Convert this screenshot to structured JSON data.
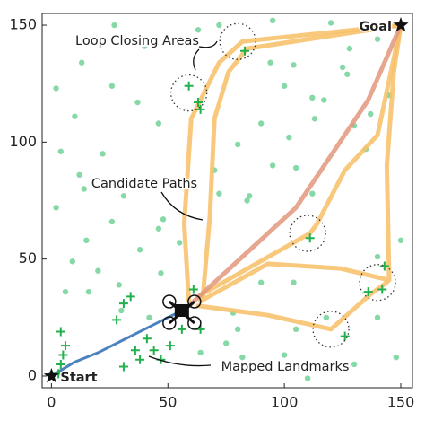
{
  "chart_data": {
    "type": "scatter",
    "xlim": [
      -4,
      155
    ],
    "ylim": [
      -5,
      155
    ],
    "xticks": [
      0,
      50,
      100,
      150
    ],
    "yticks": [
      0,
      50,
      100,
      150
    ],
    "grid": false,
    "series": [
      {
        "kind": "dot",
        "color": "#86d9a7",
        "x": [
          2,
          13,
          26,
          4,
          22,
          37,
          40,
          46,
          12,
          2,
          26,
          15,
          55,
          33,
          72,
          80,
          90,
          100,
          105,
          117,
          127,
          137,
          145,
          63,
          72,
          94,
          120,
          135,
          112,
          84,
          9,
          16,
          38,
          47,
          30,
          20,
          10,
          46,
          78,
          90,
          105,
          118,
          140,
          148,
          100,
          110,
          130,
          140,
          95,
          75,
          85,
          112,
          128,
          95,
          140,
          125,
          64,
          80,
          70,
          104,
          6,
          29,
          48,
          31,
          14,
          27,
          42,
          150,
          104,
          130,
          102,
          82,
          113
        ],
        "values": [
          123,
          134,
          124,
          96,
          95,
          117,
          141,
          108,
          86,
          72,
          66,
          58,
          57,
          83,
          78,
          99,
          108,
          124,
          89,
          118,
          129,
          112,
          120,
          148,
          150,
          134,
          151,
          97,
          119,
          75,
          49,
          36,
          54,
          44,
          28,
          45,
          111,
          63,
          27,
          40,
          20,
          25,
          51,
          8,
          9,
          -1,
          5,
          25,
          90,
          14,
          77,
          78,
          140,
          152,
          144,
          132,
          10,
          20,
          88,
          40,
          36,
          39,
          67,
          77,
          80,
          150,
          25,
          58,
          133,
          107,
          102,
          8,
          110
        ]
      },
      {
        "kind": "plus",
        "color": "#21b04b",
        "x": [
          4,
          6,
          5,
          4,
          28,
          34,
          31,
          41,
          36,
          44,
          51,
          61,
          56,
          64,
          31,
          38,
          47,
          59,
          63,
          64,
          83,
          111,
          126,
          136,
          143,
          142,
          3
        ],
        "values": [
          19,
          13,
          9,
          5,
          24,
          34,
          31,
          16,
          11,
          11,
          13,
          37,
          20,
          20,
          4,
          7,
          7,
          124,
          117,
          114,
          139,
          59,
          17,
          36,
          47,
          37,
          1
        ]
      },
      {
        "kind": "line",
        "color": "#f7bf66",
        "x": [
          59,
          57,
          60,
          72,
          82,
          101,
          150
        ],
        "values": [
          32,
          65,
          110,
          134,
          143,
          145,
          150
        ]
      },
      {
        "kind": "line",
        "color": "#f7bf66",
        "x": [
          65,
          68,
          70,
          76,
          84,
          150
        ],
        "values": [
          34,
          68,
          110,
          130,
          140,
          150
        ]
      },
      {
        "kind": "line",
        "color": "#f7bf66",
        "x": [
          63,
          111,
          114,
          126,
          140,
          150
        ],
        "values": [
          34,
          61,
          65,
          88,
          103,
          150
        ]
      },
      {
        "kind": "line",
        "color": "#f7bf66",
        "x": [
          64,
          93,
          124,
          145,
          144,
          147,
          150
        ],
        "values": [
          32,
          48,
          46,
          41,
          90,
          130,
          150
        ]
      },
      {
        "kind": "line",
        "color": "#f7bf66",
        "x": [
          63,
          93,
          120,
          137,
          144
        ],
        "values": [
          30,
          26,
          20,
          35,
          40
        ]
      },
      {
        "kind": "line",
        "color": "#e2967c",
        "x": [
          59,
          105,
          136,
          150
        ],
        "values": [
          30,
          72,
          118,
          150
        ]
      },
      {
        "kind": "line",
        "color": "#2c6cb4",
        "x": [
          0,
          10,
          20,
          30,
          40,
          50,
          56
        ],
        "values": [
          0,
          6,
          10,
          15,
          20,
          25,
          28
        ]
      }
    ],
    "loop_areas": {
      "x": [
        80,
        59,
        110,
        140,
        120
      ],
      "y": [
        143,
        121,
        61,
        40,
        20
      ]
    },
    "points": [
      {
        "label": "Start",
        "x": 0,
        "y": 0
      },
      {
        "label": "Goal",
        "x": 150,
        "y": 150
      }
    ],
    "annotations": [
      "Loop Closing Areas",
      "Candidate Paths",
      "Mapped Landmarks"
    ]
  }
}
